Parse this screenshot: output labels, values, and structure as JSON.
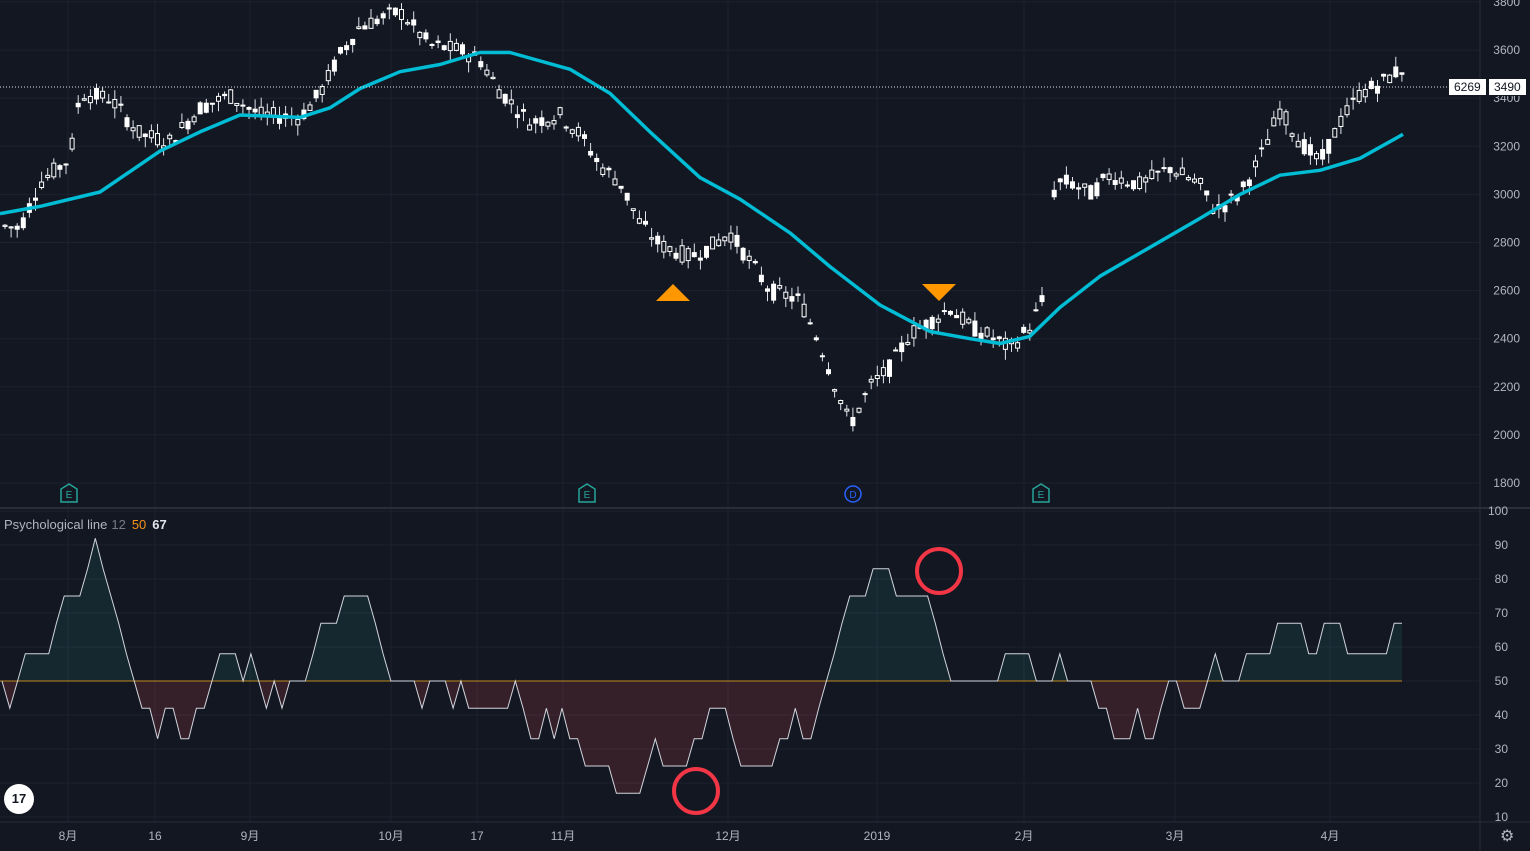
{
  "chart_data": [
    {
      "type": "candlestick",
      "ylim": [
        1750,
        3830
      ],
      "yticks": [
        1800,
        2000,
        2200,
        2400,
        2600,
        2800,
        3000,
        3200,
        3400,
        3600,
        3800
      ],
      "last_price": 3490,
      "last_volume": 6269,
      "ma_color": "#00bcd4",
      "markers": [
        {
          "type": "buy",
          "color": "#ff9800"
        },
        {
          "type": "sell",
          "color": "#ff9800"
        }
      ],
      "events": [
        "E",
        "E",
        "D",
        "E"
      ]
    },
    {
      "type": "line",
      "name": "Psychological line",
      "params": [
        "12",
        "50",
        "67"
      ],
      "ylim": [
        10,
        100
      ],
      "yticks": [
        10,
        20,
        30,
        40,
        50,
        60,
        70,
        80,
        90,
        100
      ],
      "midline": 50,
      "values": [
        50,
        42,
        50,
        58,
        58,
        58,
        58,
        67,
        75,
        75,
        75,
        83,
        92,
        83,
        75,
        67,
        58,
        50,
        42,
        42,
        33,
        42,
        42,
        33,
        33,
        42,
        42,
        50,
        58,
        58,
        58,
        50,
        58,
        50,
        42,
        50,
        42,
        50,
        50,
        50,
        58,
        67,
        67,
        67,
        75,
        75,
        75,
        75,
        67,
        58,
        50,
        50,
        50,
        50,
        42,
        50,
        50,
        50,
        42,
        50,
        42,
        42,
        42,
        42,
        42,
        42,
        50,
        42,
        33,
        33,
        42,
        33,
        42,
        33,
        33,
        25,
        25,
        25,
        25,
        17,
        17,
        17,
        17,
        25,
        33,
        25,
        25,
        25,
        25,
        33,
        33,
        42,
        42,
        42,
        33,
        25,
        25,
        25,
        25,
        25,
        33,
        33,
        42,
        33,
        33,
        42,
        50,
        58,
        67,
        75,
        75,
        75,
        83,
        83,
        83,
        75,
        75,
        75,
        75,
        75,
        67,
        58,
        50,
        50,
        50,
        50,
        50,
        50,
        50,
        58,
        58,
        58,
        58,
        50,
        50,
        50,
        58,
        50,
        50,
        50,
        50,
        42,
        42,
        33,
        33,
        33,
        42,
        33,
        33,
        42,
        50,
        50,
        42,
        42,
        42,
        50,
        58,
        50,
        50,
        50,
        58,
        58,
        58,
        58,
        67,
        67,
        67,
        67,
        58,
        58,
        67,
        67,
        67,
        58,
        58,
        58,
        58,
        58,
        58,
        67,
        67
      ]
    }
  ],
  "x_labels": [
    "8月",
    "16",
    "9月",
    "10月",
    "17",
    "11月",
    "12月",
    "2019",
    "2月",
    "3月",
    "4月"
  ],
  "ind_title": {
    "name": "Psychological line",
    "p1": "12",
    "p2": "50",
    "p3": "67"
  },
  "logo_text": "17",
  "gear_icon": "⚙"
}
